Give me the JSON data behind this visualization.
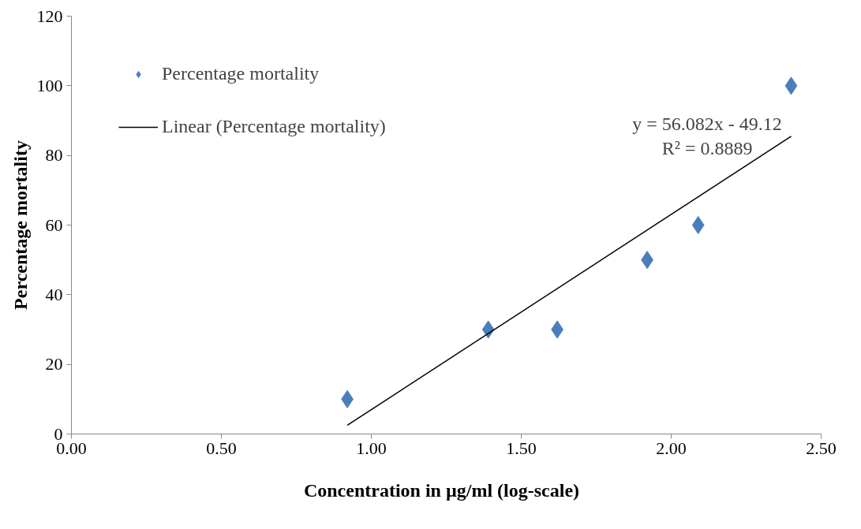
{
  "chart_data": {
    "type": "scatter",
    "xlabel": "Concentration  in  µg/ml (log-scale)",
    "ylabel": "Percentage mortality",
    "series": [
      {
        "name": "Percentage mortality",
        "color": "#4a7ebb",
        "marker": "diamond",
        "x": [
          0.92,
          1.39,
          1.62,
          1.92,
          2.09,
          2.4
        ],
        "values": [
          10,
          30,
          30,
          50,
          60,
          100
        ]
      },
      {
        "name": "Linear (Percentage mortality)",
        "type": "line",
        "color": "#000000",
        "x": [
          0.92,
          2.4
        ],
        "values": [
          2.5,
          85.5
        ]
      }
    ],
    "annotations": [
      "y = 56.082x - 49.12",
      "R² = 0.8889"
    ],
    "xlim": [
      0,
      2.5
    ],
    "xticks": [
      {
        "value": 0,
        "label": "0.00"
      },
      {
        "value": 0.5,
        "label": "0.50"
      },
      {
        "value": 1,
        "label": "1.00"
      },
      {
        "value": 1.5,
        "label": "1.50"
      },
      {
        "value": 2,
        "label": "2.00"
      },
      {
        "value": 2.5,
        "label": "2.50"
      }
    ],
    "ylim": [
      0,
      120
    ],
    "yticks": [
      0,
      20,
      40,
      60,
      80,
      100,
      120
    ],
    "grid": false,
    "legend": "top left"
  }
}
